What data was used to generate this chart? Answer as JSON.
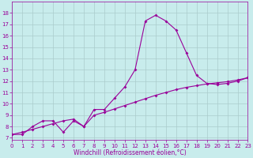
{
  "xlabel": "Windchill (Refroidissement éolien,°C)",
  "bg_color": "#c8ecec",
  "line_color": "#990099",
  "grid_color": "#aacccc",
  "x_data": [
    0,
    1,
    2,
    3,
    4,
    5,
    6,
    7,
    8,
    9,
    10,
    11,
    12,
    13,
    14,
    15,
    16,
    17,
    18,
    19,
    20,
    21,
    22,
    23
  ],
  "y_actual": [
    7.3,
    7.3,
    8.0,
    8.5,
    8.5,
    7.5,
    8.5,
    8.0,
    9.5,
    9.5,
    10.5,
    11.5,
    13.0,
    17.3,
    17.8,
    17.3,
    16.5,
    14.5,
    12.5,
    11.8,
    11.7,
    11.8,
    12.0,
    12.3
  ],
  "y_trend": [
    7.3,
    7.5,
    7.75,
    8.0,
    8.25,
    8.5,
    8.65,
    8.0,
    9.0,
    9.25,
    9.55,
    9.85,
    10.15,
    10.45,
    10.75,
    11.0,
    11.25,
    11.45,
    11.6,
    11.75,
    11.85,
    11.95,
    12.1,
    12.3
  ],
  "xlim": [
    0,
    23
  ],
  "ylim": [
    6.8,
    19.0
  ],
  "yticks": [
    7,
    8,
    9,
    10,
    11,
    12,
    13,
    14,
    15,
    16,
    17,
    18
  ],
  "xticks": [
    0,
    1,
    2,
    3,
    4,
    5,
    6,
    7,
    8,
    9,
    10,
    11,
    12,
    13,
    14,
    15,
    16,
    17,
    18,
    19,
    20,
    21,
    22,
    23
  ],
  "xlabel_fontsize": 5.5,
  "tick_fontsize": 5,
  "marker_size": 2.0,
  "line_width": 0.8
}
